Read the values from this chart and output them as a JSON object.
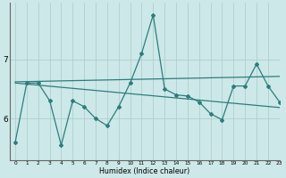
{
  "x": [
    0,
    1,
    2,
    3,
    4,
    5,
    6,
    7,
    8,
    9,
    10,
    11,
    12,
    13,
    14,
    15,
    16,
    17,
    18,
    19,
    20,
    21,
    22,
    23
  ],
  "line1": [
    5.6,
    6.6,
    6.6,
    6.3,
    5.55,
    6.3,
    6.2,
    6.0,
    5.88,
    6.2,
    6.6,
    7.1,
    7.75,
    6.5,
    6.4,
    6.38,
    6.28,
    6.08,
    5.98,
    6.55,
    6.55,
    6.92,
    6.55,
    6.28
  ],
  "trend1": [
    6.62,
    6.624,
    6.628,
    6.632,
    6.636,
    6.64,
    6.644,
    6.648,
    6.652,
    6.656,
    6.66,
    6.664,
    6.668,
    6.672,
    6.676,
    6.68,
    6.684,
    6.688,
    6.692,
    6.696,
    6.7,
    6.704,
    6.708,
    6.712
  ],
  "trend2": [
    6.6,
    6.582,
    6.564,
    6.546,
    6.528,
    6.51,
    6.492,
    6.474,
    6.456,
    6.438,
    6.42,
    6.402,
    6.384,
    6.366,
    6.348,
    6.33,
    6.312,
    6.294,
    6.276,
    6.258,
    6.24,
    6.222,
    6.204,
    6.186
  ],
  "color": "#2d7d7d",
  "bg_color": "#cde8e8",
  "grid_color": "#aed0d0",
  "xlabel": "Humidex (Indice chaleur)",
  "yticks": [
    6,
    7
  ],
  "ylim": [
    5.3,
    7.95
  ],
  "xlim": [
    -0.5,
    23
  ]
}
